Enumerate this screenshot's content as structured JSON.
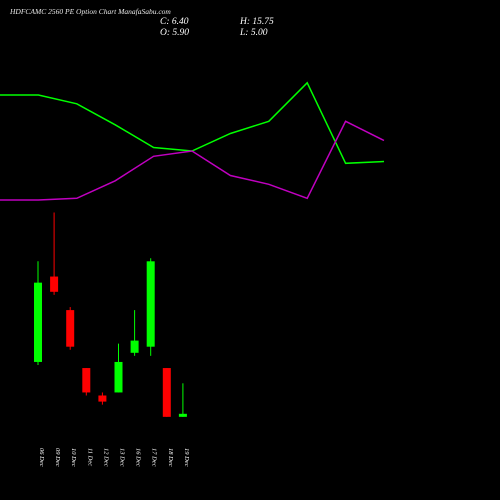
{
  "header": {
    "title": "HDFCAMC 2560  PE Option  Chart ManafaSabu.com",
    "c_label": "C: 6.40",
    "o_label": "O: 5.90",
    "h_label": "H: 15.75",
    "l_label": "L: 5.00"
  },
  "chart_data": {
    "type": "candlestick",
    "title": "HDFCAMC 2560  PE Option  Chart ManafaSabu.com",
    "categories": [
      "06 Dec",
      "09 Dec",
      "10 Dec",
      "11 Dec",
      "12 Dec",
      "13 Dec",
      "16 Dec",
      "17 Dec",
      "18 Dec",
      "19 Dec"
    ],
    "candles": [
      {
        "date": "06 Dec",
        "open": 41,
        "high": 74,
        "low": 40,
        "close": 67,
        "direction": "up"
      },
      {
        "date": "09 Dec",
        "open": 69,
        "high": 90,
        "low": 63,
        "close": 64,
        "direction": "down"
      },
      {
        "date": "10 Dec",
        "open": 58,
        "high": 59,
        "low": 45,
        "close": 46,
        "direction": "down"
      },
      {
        "date": "11 Dec",
        "open": 39,
        "high": 39,
        "low": 30,
        "close": 31,
        "direction": "down"
      },
      {
        "date": "12 Dec",
        "open": 30,
        "high": 31,
        "low": 27,
        "close": 28,
        "direction": "down"
      },
      {
        "date": "13 Dec",
        "open": 31,
        "high": 47,
        "low": 31,
        "close": 41,
        "direction": "up"
      },
      {
        "date": "16 Dec",
        "open": 44,
        "high": 58,
        "low": 43,
        "close": 48,
        "direction": "up"
      },
      {
        "date": "17 Dec",
        "open": 46,
        "high": 75,
        "low": 43,
        "close": 74,
        "direction": "up"
      },
      {
        "date": "18 Dec",
        "open": 39,
        "high": 39,
        "low": 23,
        "close": 23,
        "direction": "down"
      },
      {
        "date": "19 Dec",
        "open": 23,
        "high": 34,
        "low": 23,
        "close": 24,
        "direction": "up"
      }
    ],
    "overlay_series": [
      {
        "color": "#00ff00",
        "values": [
          100,
          100,
          95,
          83,
          70,
          68,
          78,
          85,
          107,
          61,
          62
        ]
      },
      {
        "color": "#c000c0",
        "values": [
          40,
          40,
          41,
          51,
          65,
          68,
          54,
          49,
          41,
          85,
          74
        ]
      }
    ],
    "colors": {
      "up": "#00ff00",
      "down": "#ff0000",
      "background": "#000000",
      "text": "#ffffff"
    },
    "grid": false
  }
}
